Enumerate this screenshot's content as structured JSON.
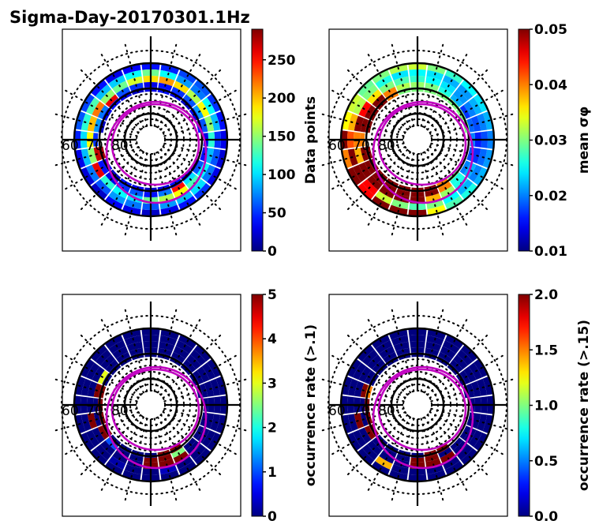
{
  "figure": {
    "title": "Sigma-Day-20170301.1Hz"
  },
  "chart_data": [
    {
      "type": "heatmap",
      "projection": "polar (magnetic latitude / MLT)",
      "title": "Sigma-Day-20170301.1Hz",
      "panel": "top-left",
      "colormap": "jet",
      "colorbar": {
        "label": "Data points",
        "range": [
          0,
          290
        ],
        "ticks": [
          0,
          50,
          100,
          150,
          200,
          250
        ],
        "tick_labels": [
          "0",
          "50",
          "100",
          "150",
          "200",
          "250"
        ]
      },
      "latitude_labels": [
        "60",
        "70",
        "80"
      ],
      "bins_note": "Ring bins indexed from outer ring (0) inward; sectors are MLT hours 0-23 (00 at bottom, 12 at top).",
      "rings": [
        {
          "ring": 0,
          "values": [
            20,
            30,
            40,
            50,
            30,
            25,
            30,
            40,
            50,
            60,
            55,
            45,
            40,
            35,
            30,
            40,
            55,
            60,
            45,
            30,
            25,
            20,
            35,
            30
          ]
        },
        {
          "ring": 1,
          "values": [
            60,
            80,
            90,
            100,
            70,
            60,
            50,
            90,
            110,
            70,
            80,
            110,
            140,
            110,
            95,
            90,
            130,
            120,
            100,
            90,
            70,
            60,
            80,
            70
          ]
        },
        {
          "ring": 2,
          "values": [
            140,
            160,
            180,
            130,
            110,
            90,
            120,
            150,
            180,
            160,
            190,
            210,
            190,
            170,
            140,
            150,
            220,
            200,
            180,
            150,
            260,
            120,
            110,
            100
          ]
        },
        {
          "ring": 3,
          "values": [
            40,
            70,
            250,
            100,
            60,
            40,
            30,
            60,
            80,
            60,
            50,
            40,
            30,
            50,
            60,
            260,
            70,
            80,
            50,
            270,
            40,
            30,
            50,
            60
          ]
        },
        {
          "ring": 4,
          "values": [
            20,
            30,
            40,
            30,
            20,
            null,
            null,
            40,
            30,
            20,
            30,
            40,
            30,
            20,
            30,
            40,
            30,
            20,
            null,
            280,
            30,
            20,
            40,
            30
          ]
        }
      ]
    },
    {
      "type": "heatmap",
      "panel": "top-right",
      "colormap": "jet",
      "colorbar": {
        "label": "mean σ_φ",
        "range": [
          0.01,
          0.05
        ],
        "ticks": [
          0.01,
          0.02,
          0.03,
          0.04,
          0.05
        ],
        "tick_labels": [
          "0.01",
          "0.02",
          "0.03",
          "0.04",
          "0.05"
        ]
      },
      "latitude_labels": [
        "60",
        "70",
        "80"
      ],
      "rings": [
        {
          "ring": 0,
          "values": [
            0.05,
            0.035,
            0.028,
            0.026,
            0.022,
            0.021,
            0.02,
            0.022,
            0.024,
            0.025,
            0.027,
            0.03,
            0.033,
            0.032,
            0.03,
            0.029,
            0.033,
            0.035,
            0.05,
            0.04,
            0.05,
            0.045,
            0.05,
            0.05
          ]
        },
        {
          "ring": 1,
          "values": [
            0.028,
            0.03,
            0.025,
            0.022,
            0.02,
            0.019,
            0.018,
            0.02,
            0.022,
            0.021,
            0.022,
            0.024,
            0.025,
            0.024,
            0.026,
            0.03,
            0.032,
            0.038,
            0.042,
            0.05,
            0.05,
            0.045,
            0.033,
            0.03
          ]
        },
        {
          "ring": 2,
          "values": [
            0.05,
            0.038,
            0.031,
            0.026,
            0.022,
            0.017,
            0.016,
            0.018,
            0.02,
            0.021,
            0.024,
            0.025,
            0.027,
            0.028,
            0.03,
            0.036,
            0.045,
            0.05,
            0.04,
            0.038,
            0.05,
            0.05,
            0.05,
            0.05
          ]
        },
        {
          "ring": 3,
          "values": [
            0.05,
            0.05,
            0.04,
            0.026,
            0.02,
            0.018,
            0.02,
            0.019,
            0.017,
            0.022,
            0.026,
            0.03,
            0.031,
            0.032,
            0.04,
            0.05,
            0.05,
            0.05,
            0.04,
            0.05,
            0.05,
            0.05,
            0.05,
            0.05
          ]
        },
        {
          "ring": 4,
          "values": [
            0.05,
            0.05,
            0.04,
            0.03,
            null,
            null,
            null,
            0.03,
            0.03,
            0.03,
            0.03,
            0.03,
            0.03,
            0.03,
            0.04,
            0.05,
            0.05,
            0.05,
            null,
            0.05,
            0.05,
            0.05,
            0.05,
            0.05
          ]
        }
      ]
    },
    {
      "type": "heatmap",
      "panel": "bottom-left",
      "colormap": "jet",
      "colorbar": {
        "label": "occurrence rate (>.1)",
        "range": [
          0,
          5
        ],
        "ticks": [
          0,
          1,
          2,
          3,
          4,
          5
        ],
        "tick_labels": [
          "0",
          "1",
          "2",
          "3",
          "4",
          "5"
        ]
      },
      "latitude_labels": [
        "60",
        "70",
        "80"
      ],
      "rings": [
        {
          "ring": 0,
          "values": [
            0,
            0,
            0,
            0,
            0,
            0,
            0,
            0,
            0,
            0,
            0,
            0,
            0,
            0,
            0,
            0,
            0,
            0,
            0,
            0,
            0,
            0,
            0,
            0
          ]
        },
        {
          "ring": 1,
          "values": [
            0,
            0.3,
            0,
            0,
            0,
            0,
            0,
            0,
            0,
            0,
            0,
            0,
            0,
            0,
            0,
            0,
            0,
            0,
            0,
            0,
            0,
            0,
            0.2,
            0
          ]
        },
        {
          "ring": 2,
          "values": [
            5,
            5,
            5,
            0,
            0,
            0,
            0,
            0,
            0,
            0,
            0,
            0,
            0,
            0,
            0,
            0,
            0,
            0,
            0,
            5,
            0,
            0,
            0,
            0
          ]
        },
        {
          "ring": 3,
          "values": [
            5,
            5,
            2.5,
            0,
            0,
            0,
            0,
            0,
            0,
            0,
            0,
            0,
            0,
            0,
            0,
            0,
            3,
            5,
            0,
            0,
            5,
            1,
            0,
            0
          ]
        },
        {
          "ring": 4,
          "values": [
            0,
            5,
            5,
            null,
            null,
            null,
            null,
            0,
            0,
            0,
            0,
            0,
            0,
            0,
            0,
            0,
            0,
            5,
            5,
            5,
            5,
            0,
            0,
            0
          ]
        }
      ]
    },
    {
      "type": "heatmap",
      "panel": "bottom-right",
      "colormap": "jet",
      "colorbar": {
        "label": "occurrence rate (>.15)",
        "range": [
          0,
          2
        ],
        "ticks": [
          0,
          0.5,
          1,
          1.5,
          2
        ],
        "tick_labels": [
          "0.0",
          "0.5",
          "1.0",
          "1.5",
          "2.0"
        ]
      },
      "latitude_labels": [
        "60",
        "70",
        "80"
      ],
      "rings": [
        {
          "ring": 0,
          "values": [
            0,
            0,
            0,
            0,
            0,
            0,
            0,
            0,
            0,
            0,
            0,
            0,
            0,
            0,
            0,
            0,
            0,
            0,
            0,
            0,
            0,
            0,
            0,
            0
          ]
        },
        {
          "ring": 1,
          "values": [
            0,
            0,
            0,
            0,
            0,
            0,
            0,
            0,
            0,
            0,
            0,
            0,
            0,
            0,
            0,
            0,
            0,
            0,
            0,
            0,
            0,
            0,
            1.4,
            0
          ]
        },
        {
          "ring": 2,
          "values": [
            2,
            2,
            2,
            0,
            0,
            0,
            0,
            0,
            0,
            0,
            0,
            0,
            0,
            0,
            0,
            0,
            0,
            0,
            0,
            2,
            0,
            0,
            0,
            0
          ]
        },
        {
          "ring": 3,
          "values": [
            2,
            2,
            0,
            0,
            0,
            0,
            0,
            0,
            0,
            0,
            0,
            0,
            0,
            0,
            0,
            0,
            0,
            2,
            0,
            0,
            2,
            0,
            0,
            0
          ]
        },
        {
          "ring": 4,
          "values": [
            0,
            2,
            2,
            null,
            null,
            null,
            null,
            0,
            0,
            0,
            0,
            0,
            0,
            0,
            0,
            0,
            0,
            1.5,
            2,
            2,
            2,
            0,
            0,
            0
          ]
        }
      ]
    }
  ]
}
